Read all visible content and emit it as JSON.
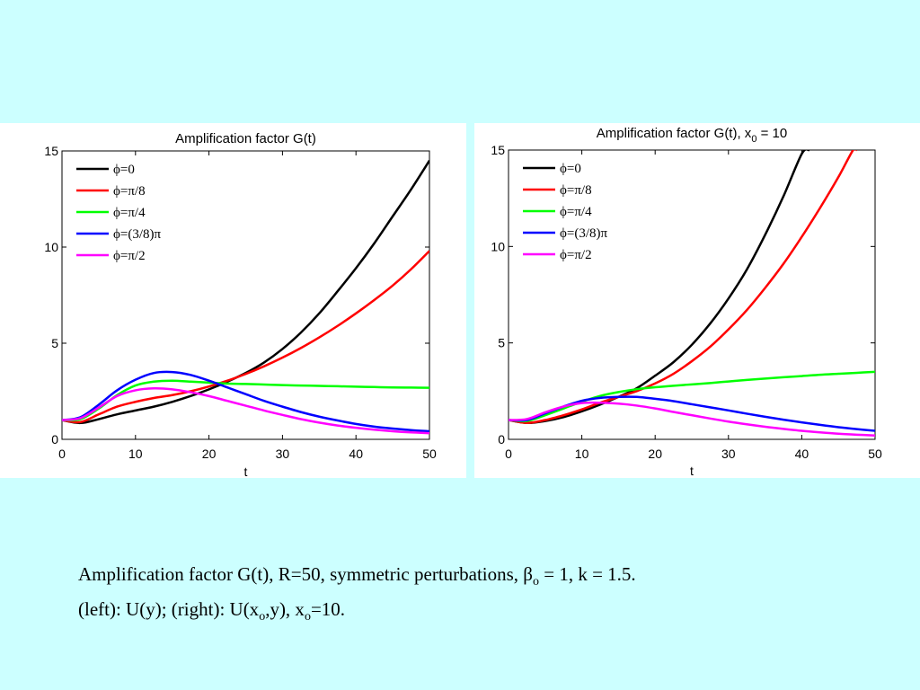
{
  "chart_data": [
    {
      "type": "line",
      "title": "Amplification factor G(t)",
      "xlabel": "t",
      "ylabel": "",
      "xlim": [
        0,
        50
      ],
      "ylim": [
        0,
        15
      ],
      "xticks": [
        "0",
        "10",
        "20",
        "30",
        "40",
        "50"
      ],
      "yticks": [
        "0",
        "5",
        "10",
        "15"
      ],
      "grid": false,
      "legend_position": "top-left",
      "series": [
        {
          "name": "ϕ=0",
          "color": "#000000",
          "x": [
            0,
            2.5,
            5,
            7.5,
            10,
            12.5,
            15,
            17.5,
            20,
            22.5,
            25,
            27.5,
            30,
            32.5,
            35,
            37.5,
            40,
            42.5,
            45,
            47.5,
            50
          ],
          "y": [
            1.0,
            0.85,
            1.05,
            1.3,
            1.5,
            1.7,
            1.95,
            2.25,
            2.6,
            3.0,
            3.45,
            4.0,
            4.7,
            5.55,
            6.55,
            7.7,
            8.9,
            10.2,
            11.6,
            13.0,
            14.5
          ]
        },
        {
          "name": "ϕ=π/8",
          "color": "#ff0000",
          "x": [
            0,
            2.5,
            5,
            7.5,
            10,
            12.5,
            15,
            17.5,
            20,
            22.5,
            25,
            27.5,
            30,
            32.5,
            35,
            37.5,
            40,
            42.5,
            45,
            47.5,
            50
          ],
          "y": [
            1.0,
            0.9,
            1.3,
            1.7,
            1.95,
            2.15,
            2.3,
            2.5,
            2.75,
            3.05,
            3.4,
            3.8,
            4.25,
            4.75,
            5.3,
            5.9,
            6.55,
            7.25,
            8.0,
            8.85,
            9.8
          ]
        },
        {
          "name": "ϕ=π/4",
          "color": "#00ff00",
          "x": [
            0,
            2.5,
            5,
            7.5,
            10,
            12.5,
            15,
            17.5,
            20,
            22.5,
            25,
            27.5,
            30,
            32.5,
            35,
            37.5,
            40,
            42.5,
            45,
            47.5,
            50
          ],
          "y": [
            1.0,
            1.05,
            1.6,
            2.3,
            2.8,
            3.0,
            3.05,
            3.0,
            2.95,
            2.9,
            2.88,
            2.85,
            2.82,
            2.8,
            2.78,
            2.76,
            2.74,
            2.72,
            2.7,
            2.69,
            2.68
          ]
        },
        {
          "name": "ϕ=(3/8)π",
          "color": "#0000ff",
          "x": [
            0,
            2.5,
            5,
            7.5,
            10,
            12.5,
            15,
            17.5,
            20,
            22.5,
            25,
            27.5,
            30,
            32.5,
            35,
            37.5,
            40,
            42.5,
            45,
            47.5,
            50
          ],
          "y": [
            1.0,
            1.15,
            1.8,
            2.55,
            3.1,
            3.45,
            3.5,
            3.35,
            3.05,
            2.7,
            2.35,
            2.0,
            1.7,
            1.42,
            1.18,
            0.98,
            0.8,
            0.66,
            0.56,
            0.48,
            0.42
          ]
        },
        {
          "name": "ϕ=π/2",
          "color": "#ff00ff",
          "x": [
            0,
            2.5,
            5,
            7.5,
            10,
            12.5,
            15,
            17.5,
            20,
            22.5,
            25,
            27.5,
            30,
            32.5,
            35,
            37.5,
            40,
            42.5,
            45,
            47.5,
            50
          ],
          "y": [
            1.0,
            1.1,
            1.65,
            2.25,
            2.55,
            2.65,
            2.6,
            2.45,
            2.25,
            2.0,
            1.75,
            1.5,
            1.27,
            1.05,
            0.87,
            0.72,
            0.6,
            0.5,
            0.42,
            0.36,
            0.32
          ]
        }
      ]
    },
    {
      "type": "line",
      "title": "Amplification factor G(t), x",
      "title_subscript": "0",
      "title_suffix": " = 10",
      "xlabel": "t",
      "ylabel": "",
      "xlim": [
        0,
        50
      ],
      "ylim": [
        0,
        15
      ],
      "xticks": [
        "0",
        "10",
        "20",
        "30",
        "40",
        "50"
      ],
      "yticks": [
        "0",
        "5",
        "10",
        "15"
      ],
      "grid": false,
      "legend_position": "top-left",
      "series": [
        {
          "name": "ϕ=0",
          "color": "#000000",
          "x": [
            0,
            2.5,
            5,
            7.5,
            10,
            12.5,
            15,
            17.5,
            20,
            22.5,
            25,
            27.5,
            30,
            32.5,
            35,
            37.5,
            40,
            41
          ],
          "y": [
            1.0,
            0.85,
            0.95,
            1.15,
            1.45,
            1.8,
            2.2,
            2.65,
            3.3,
            4.0,
            4.9,
            6.0,
            7.3,
            8.8,
            10.6,
            12.6,
            14.8,
            15.0
          ]
        },
        {
          "name": "ϕ=π/8",
          "color": "#ff0000",
          "x": [
            0,
            2.5,
            5,
            7.5,
            10,
            12.5,
            15,
            17.5,
            20,
            22.5,
            25,
            27.5,
            30,
            32.5,
            35,
            37.5,
            40,
            42.5,
            45,
            47,
            47.5
          ],
          "y": [
            1.0,
            0.85,
            1.0,
            1.25,
            1.55,
            1.9,
            2.2,
            2.5,
            2.9,
            3.4,
            4.05,
            4.8,
            5.7,
            6.7,
            7.85,
            9.1,
            10.5,
            12.0,
            13.6,
            15.0,
            15.0
          ]
        },
        {
          "name": "ϕ=π/4",
          "color": "#00ff00",
          "x": [
            0,
            2.5,
            5,
            7.5,
            10,
            12.5,
            15,
            17.5,
            20,
            22.5,
            25,
            27.5,
            30,
            32.5,
            35,
            37.5,
            40,
            42.5,
            45,
            47.5,
            50
          ],
          "y": [
            1.0,
            0.95,
            1.25,
            1.6,
            1.95,
            2.25,
            2.45,
            2.6,
            2.7,
            2.78,
            2.85,
            2.92,
            3.0,
            3.08,
            3.15,
            3.22,
            3.28,
            3.35,
            3.4,
            3.45,
            3.5
          ]
        },
        {
          "name": "ϕ=(3/8)π",
          "color": "#0000ff",
          "x": [
            0,
            2.5,
            5,
            7.5,
            10,
            12.5,
            15,
            17.5,
            20,
            22.5,
            25,
            27.5,
            30,
            32.5,
            35,
            37.5,
            40,
            42.5,
            45,
            47.5,
            50
          ],
          "y": [
            1.0,
            1.0,
            1.35,
            1.7,
            2.0,
            2.15,
            2.2,
            2.2,
            2.1,
            1.98,
            1.82,
            1.66,
            1.5,
            1.33,
            1.17,
            1.02,
            0.88,
            0.75,
            0.63,
            0.53,
            0.44
          ]
        },
        {
          "name": "ϕ=π/2",
          "color": "#ff00ff",
          "x": [
            0,
            2.5,
            5,
            7.5,
            10,
            12.5,
            15,
            17.5,
            20,
            22.5,
            25,
            27.5,
            30,
            32.5,
            35,
            37.5,
            40,
            42.5,
            45,
            47.5,
            50
          ],
          "y": [
            1.0,
            1.05,
            1.4,
            1.7,
            1.88,
            1.9,
            1.85,
            1.75,
            1.6,
            1.42,
            1.25,
            1.08,
            0.92,
            0.78,
            0.65,
            0.54,
            0.44,
            0.36,
            0.29,
            0.24,
            0.2
          ]
        }
      ]
    }
  ],
  "caption": {
    "line1_pre": "Amplification factor G(t), R=50, symmetric perturbations, β",
    "line1_sub": "o",
    "line1_post": " = 1, k = 1.5.",
    "line2_a": "(left): U(y); (right): U(x",
    "line2_sub1": "o",
    "line2_b": ",y), x",
    "line2_sub2": "o",
    "line2_c": "=10."
  }
}
